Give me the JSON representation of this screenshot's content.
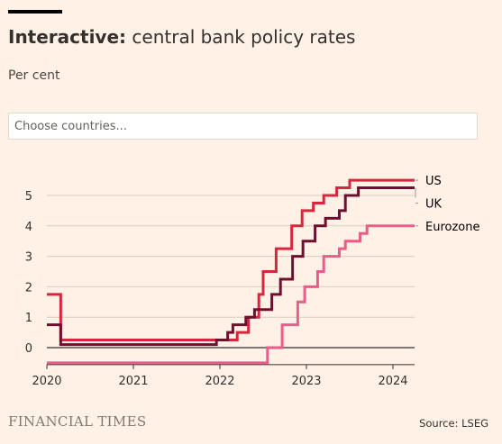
{
  "header": {
    "title_bold": "Interactive:",
    "title_rest": " central bank policy rates",
    "subtitle": "Per cent"
  },
  "search": {
    "placeholder": "Choose countries..."
  },
  "footer": {
    "brand": "FINANCIAL TIMES",
    "source": "Source: LSEG"
  },
  "colors": {
    "background": "#fff1e5",
    "grid": "#d9cbbf",
    "zero_line": "#33302e",
    "us": "#d7263d",
    "uk": "#6e0f32",
    "eurozone": "#e85d8a"
  },
  "chart_data": {
    "type": "line",
    "step": true,
    "title": "Interactive: central bank policy rates",
    "ylabel": "Per cent",
    "xlabel": "",
    "xlim": [
      2020.0,
      2024.25
    ],
    "ylim": [
      -0.5,
      5.5
    ],
    "x_ticks": [
      2020,
      2021,
      2022,
      2023,
      2024
    ],
    "y_ticks": [
      0,
      1,
      2,
      3,
      4,
      5
    ],
    "grid": true,
    "legend": "right (end-of-line labels)",
    "series": [
      {
        "name": "US",
        "color": "#d7263d",
        "points": [
          [
            2020.0,
            1.75
          ],
          [
            2020.16,
            0.25
          ],
          [
            2022.2,
            0.5
          ],
          [
            2022.33,
            1.0
          ],
          [
            2022.45,
            1.75
          ],
          [
            2022.5,
            2.5
          ],
          [
            2022.65,
            3.25
          ],
          [
            2022.83,
            4.0
          ],
          [
            2022.95,
            4.5
          ],
          [
            2023.08,
            4.75
          ],
          [
            2023.2,
            5.0
          ],
          [
            2023.35,
            5.25
          ],
          [
            2023.5,
            5.5
          ],
          [
            2024.25,
            5.5
          ]
        ]
      },
      {
        "name": "UK",
        "color": "#6e0f32",
        "points": [
          [
            2020.0,
            0.75
          ],
          [
            2020.16,
            0.1
          ],
          [
            2021.96,
            0.25
          ],
          [
            2022.09,
            0.5
          ],
          [
            2022.15,
            0.75
          ],
          [
            2022.3,
            1.0
          ],
          [
            2022.4,
            1.25
          ],
          [
            2022.6,
            1.75
          ],
          [
            2022.7,
            2.25
          ],
          [
            2022.84,
            3.0
          ],
          [
            2022.96,
            3.5
          ],
          [
            2023.1,
            4.0
          ],
          [
            2023.22,
            4.25
          ],
          [
            2023.38,
            4.5
          ],
          [
            2023.45,
            5.0
          ],
          [
            2023.6,
            5.25
          ],
          [
            2024.25,
            5.25
          ]
        ]
      },
      {
        "name": "Eurozone",
        "color": "#e85d8a",
        "points": [
          [
            2020.0,
            -0.5
          ],
          [
            2022.55,
            0.0
          ],
          [
            2022.72,
            0.75
          ],
          [
            2022.9,
            1.5
          ],
          [
            2022.98,
            2.0
          ],
          [
            2023.13,
            2.5
          ],
          [
            2023.2,
            3.0
          ],
          [
            2023.38,
            3.25
          ],
          [
            2023.45,
            3.5
          ],
          [
            2023.62,
            3.75
          ],
          [
            2023.7,
            4.0
          ],
          [
            2024.25,
            4.0
          ]
        ]
      }
    ]
  }
}
